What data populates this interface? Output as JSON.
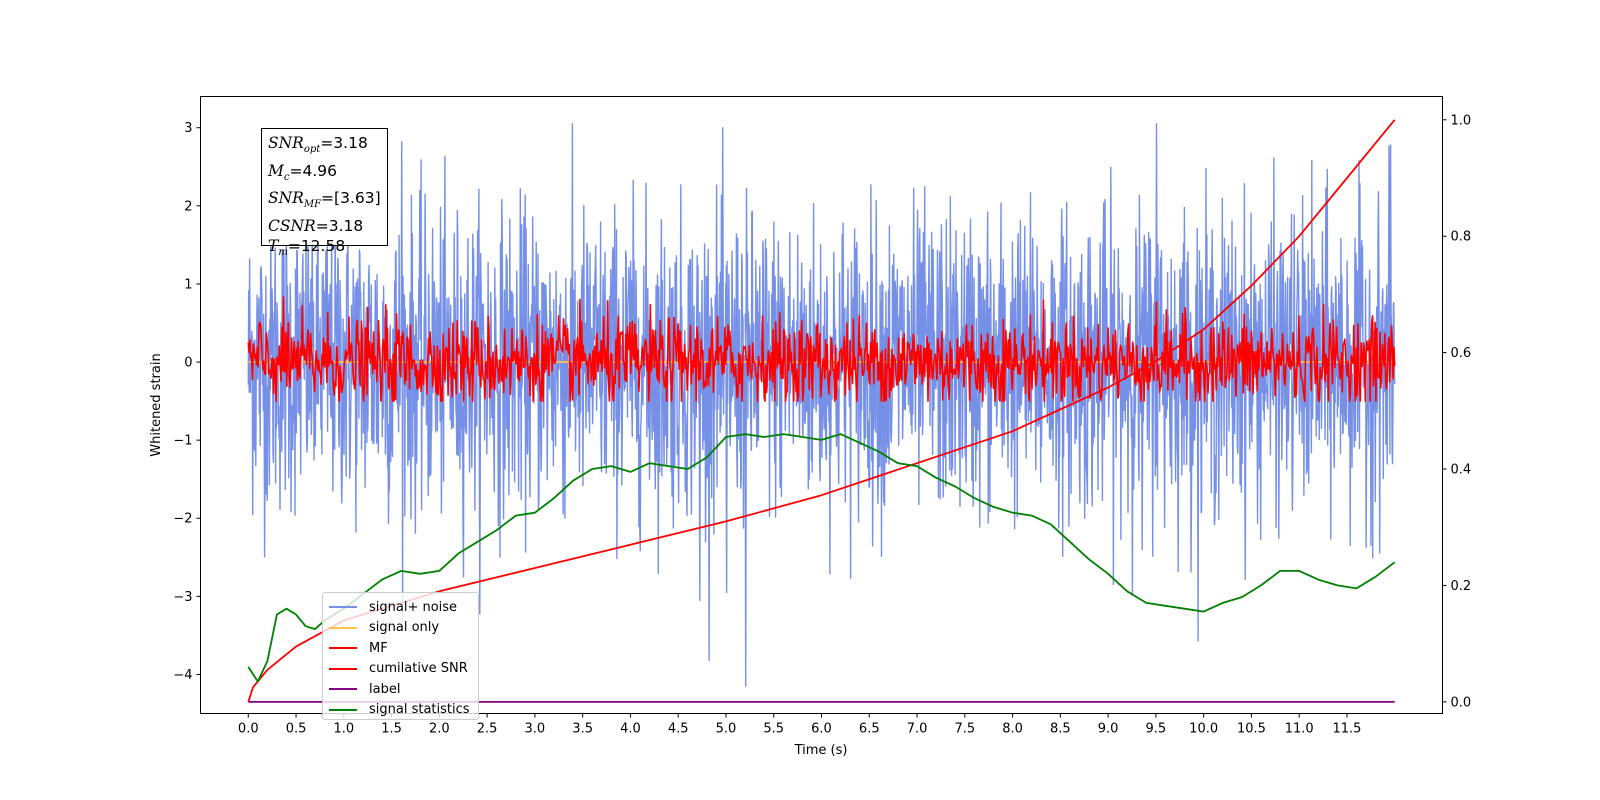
{
  "chart_data": {
    "type": "line",
    "xlabel": "Time (s)",
    "ylabel": "Whitened strain",
    "xlim": [
      -0.5,
      12.5
    ],
    "ylim": [
      -4.5,
      3.4
    ],
    "y2lim": [
      -0.02,
      1.04
    ],
    "x_ticks": [
      "0.0",
      "0.5",
      "1.0",
      "1.5",
      "2.0",
      "2.5",
      "3.0",
      "3.5",
      "4.0",
      "4.5",
      "5.0",
      "5.5",
      "6.0",
      "6.5",
      "7.0",
      "7.5",
      "8.0",
      "8.5",
      "9.0",
      "9.5",
      "10.0",
      "10.5",
      "11.0",
      "11.5"
    ],
    "y_ticks": [
      "3",
      "2",
      "1",
      "0",
      "−1",
      "−2",
      "−3",
      "−4"
    ],
    "y2_ticks": [
      "1.0",
      "0.8",
      "0.6",
      "0.4",
      "0.2",
      "0.0"
    ],
    "grid": false,
    "legend_position": "lower-left",
    "annotation": {
      "lines": [
        {
          "sym": "SNR",
          "sub": "opt",
          "val": "=3.18"
        },
        {
          "sym": "M",
          "sub": "c",
          "val": "=4.96"
        },
        {
          "sym": "SNR",
          "sub": "MF",
          "val": "=[3.63]"
        },
        {
          "sym": "CSNR",
          "sub": "",
          "val": "=3.18"
        },
        {
          "sym": "T",
          "sub": "m",
          "val": "=12.58"
        }
      ]
    },
    "series": [
      {
        "name": "signal+ noise",
        "color": "#7590e6",
        "axis": "left",
        "kind": "noise",
        "x_range": [
          0,
          12
        ],
        "mean": 0.0,
        "std": 0.95,
        "max": 3.05,
        "min": -4.15
      },
      {
        "name": "signal only",
        "color": "#ffc34d",
        "axis": "left",
        "kind": "flat",
        "x_range": [
          0,
          12
        ],
        "value": 0.0
      },
      {
        "name": "MF",
        "color": "#ff0000",
        "axis": "left",
        "kind": "noise",
        "x_range": [
          0,
          12
        ],
        "mean": 0.0,
        "std": 0.28,
        "max": 1.0,
        "min": -0.5
      },
      {
        "name": "cumilative SNR",
        "color": "#ff0000",
        "axis": "right",
        "x": [
          0,
          0.05,
          0.2,
          0.5,
          1.0,
          1.5,
          2.0,
          3.0,
          4.0,
          5.0,
          6.0,
          7.0,
          8.0,
          9.0,
          9.5,
          10.0,
          10.5,
          11.0,
          11.5,
          11.8,
          12.0
        ],
        "y": [
          0.0,
          0.025,
          0.055,
          0.095,
          0.14,
          0.165,
          0.19,
          0.23,
          0.27,
          0.31,
          0.355,
          0.41,
          0.465,
          0.54,
          0.585,
          0.64,
          0.715,
          0.8,
          0.9,
          0.96,
          1.0
        ]
      },
      {
        "name": "label",
        "color": "#800080",
        "axis": "right",
        "x": [
          0,
          12
        ],
        "y": [
          0.0,
          0.0
        ]
      },
      {
        "name": "signal statistics",
        "color": "#008000",
        "axis": "right",
        "x": [
          0.0,
          0.1,
          0.2,
          0.3,
          0.4,
          0.5,
          0.6,
          0.7,
          0.8,
          1.0,
          1.2,
          1.4,
          1.6,
          1.8,
          2.0,
          2.2,
          2.4,
          2.6,
          2.8,
          3.0,
          3.2,
          3.4,
          3.6,
          3.8,
          4.0,
          4.2,
          4.4,
          4.6,
          4.8,
          5.0,
          5.2,
          5.4,
          5.6,
          5.8,
          6.0,
          6.2,
          6.4,
          6.6,
          6.8,
          7.0,
          7.2,
          7.4,
          7.6,
          7.8,
          8.0,
          8.2,
          8.4,
          8.6,
          8.8,
          9.0,
          9.2,
          9.4,
          9.6,
          9.8,
          10.0,
          10.2,
          10.4,
          10.6,
          10.8,
          11.0,
          11.2,
          11.4,
          11.6,
          11.8,
          12.0
        ],
        "y": [
          0.06,
          0.035,
          0.07,
          0.15,
          0.16,
          0.15,
          0.13,
          0.125,
          0.14,
          0.16,
          0.185,
          0.21,
          0.225,
          0.22,
          0.225,
          0.255,
          0.275,
          0.295,
          0.32,
          0.325,
          0.35,
          0.38,
          0.4,
          0.405,
          0.395,
          0.41,
          0.405,
          0.4,
          0.42,
          0.455,
          0.46,
          0.455,
          0.46,
          0.455,
          0.45,
          0.46,
          0.445,
          0.43,
          0.41,
          0.405,
          0.385,
          0.37,
          0.35,
          0.335,
          0.325,
          0.32,
          0.305,
          0.275,
          0.245,
          0.22,
          0.19,
          0.17,
          0.165,
          0.16,
          0.155,
          0.17,
          0.18,
          0.2,
          0.225,
          0.225,
          0.21,
          0.2,
          0.195,
          0.215,
          0.24
        ]
      }
    ]
  }
}
